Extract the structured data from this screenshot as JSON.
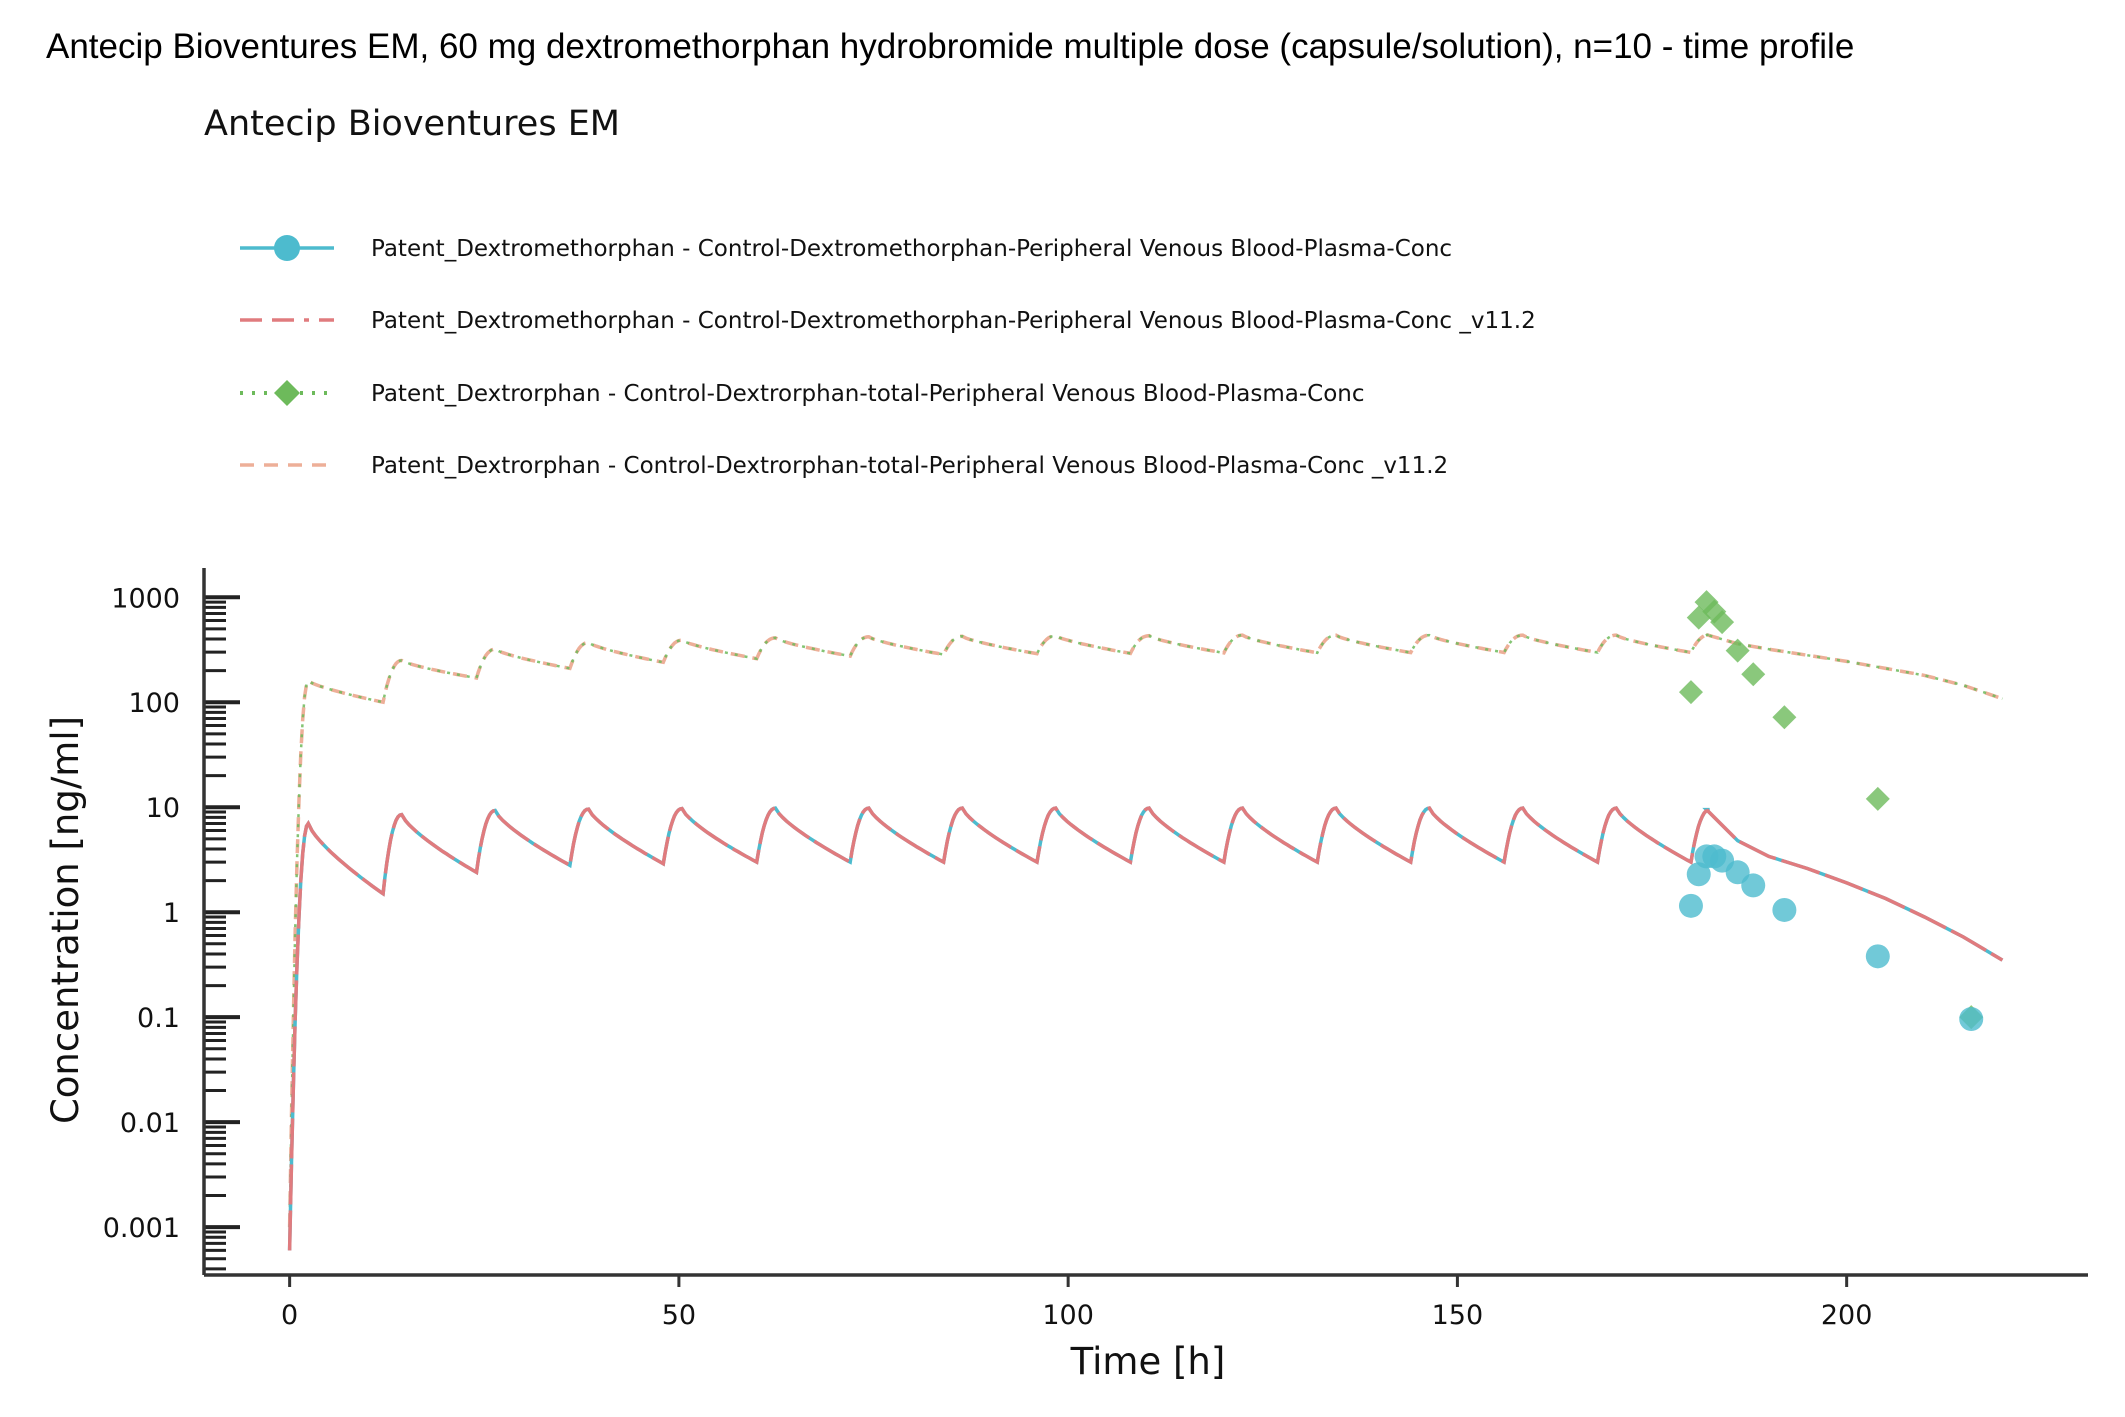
{
  "page_title": "Antecip Bioventures EM, 60 mg dextromethorphan hydrobromide multiple dose (capsule/solution), n=10 - time profile",
  "chart_data": {
    "type": "line",
    "title": "Antecip Bioventures EM",
    "xlabel": "Time [h]",
    "ylabel": "Concentration [ng/ml]",
    "xlim": [
      -11,
      231
    ],
    "ylim": [
      0.00035,
      1900
    ],
    "yscale": "log",
    "grid": false,
    "legend_position": "top-left",
    "x_ticks": [
      0,
      50,
      100,
      150,
      200
    ],
    "x_tick_labels": [
      "0",
      "50",
      "100",
      "150",
      "200"
    ],
    "y_ticks": [
      0.001,
      0.01,
      0.1,
      1,
      10,
      100,
      1000
    ],
    "y_tick_labels": [
      "0.001",
      "0.01",
      "0.1",
      "1",
      "10",
      "100",
      "1000"
    ],
    "legend": [
      {
        "label": "Patent_Dextromethorphan - Control-Dextromethorphan-Peripheral Venous Blood-Plasma-Conc",
        "color": "#4DBBCE",
        "line_style": "solid",
        "marker": "circle"
      },
      {
        "label": "Patent_Dextromethorphan - Control-Dextromethorphan-Peripheral Venous Blood-Plasma-Conc  _v11.2",
        "color": "#E07B7E",
        "line_style": "dashed",
        "marker": "none"
      },
      {
        "label": "Patent_Dextrorphan - Control-Dextrorphan-total-Peripheral Venous Blood-Plasma-Conc",
        "color": "#6DBA5B",
        "line_style": "dotted",
        "marker": "diamond"
      },
      {
        "label": "Patent_Dextrorphan - Control-Dextrorphan-total-Peripheral Venous Blood-Plasma-Conc  _v11.2",
        "color": "#EDAF98",
        "line_style": "dashed",
        "marker": "none"
      }
    ],
    "simulated": {
      "dosing_interval_h": 12,
      "end_time_h": 220,
      "dextromethorphan": {
        "color": "#E07B7E",
        "overlay_color": "#4DBBCE",
        "dose_times": [
          0,
          12,
          24,
          36,
          48,
          60,
          72,
          84,
          96,
          108,
          120,
          132,
          144,
          156,
          168,
          180
        ],
        "peak_values": [
          7.0,
          8.5,
          9.3,
          9.6,
          9.7,
          9.8,
          9.8,
          9.8,
          9.8,
          9.8,
          9.8,
          9.8,
          9.8,
          9.8,
          9.8,
          9.5
        ],
        "trough_values": [
          0.0006,
          1.5,
          2.4,
          2.8,
          2.9,
          3.0,
          3.0,
          3.0,
          3.0,
          3.0,
          3.0,
          3.0,
          3.0,
          3.0,
          3.0,
          3.0
        ],
        "final_phase": {
          "x": [
            182,
            186,
            190,
            195,
            200,
            205,
            210,
            215,
            220
          ],
          "y": [
            9.5,
            4.8,
            3.4,
            2.6,
            1.9,
            1.35,
            0.9,
            0.58,
            0.35
          ]
        }
      },
      "dextrorphan": {
        "color": "#EDAF98",
        "overlay_color": "#6DBA5B",
        "dose_times": [
          0,
          12,
          24,
          36,
          48,
          60,
          72,
          84,
          96,
          108,
          120,
          132,
          144,
          156,
          168,
          180
        ],
        "peak_values": [
          160,
          250,
          320,
          370,
          390,
          410,
          420,
          425,
          430,
          430,
          435,
          435,
          435,
          435,
          435,
          440
        ],
        "trough_values": [
          0.001,
          100,
          170,
          210,
          240,
          260,
          275,
          285,
          290,
          292,
          295,
          296,
          297,
          298,
          298,
          298
        ],
        "final_phase": {
          "x": [
            182,
            186,
            190,
            195,
            200,
            205,
            210,
            215,
            220
          ],
          "y": [
            440,
            360,
            320,
            280,
            245,
            210,
            180,
            145,
            108
          ]
        }
      }
    },
    "observed": {
      "dextromethorphan": {
        "x": [
          180,
          181,
          182,
          183,
          184,
          186,
          188,
          192,
          204,
          216
        ],
        "y": [
          1.15,
          2.3,
          3.4,
          3.4,
          3.1,
          2.4,
          1.8,
          1.05,
          0.38,
          0.096
        ]
      },
      "dextrorphan": {
        "x": [
          180,
          181,
          182,
          183,
          184,
          186,
          188,
          192,
          204,
          216
        ],
        "y": [
          125,
          640,
          900,
          730,
          580,
          310,
          185,
          72,
          12,
          0.1
        ]
      }
    }
  }
}
